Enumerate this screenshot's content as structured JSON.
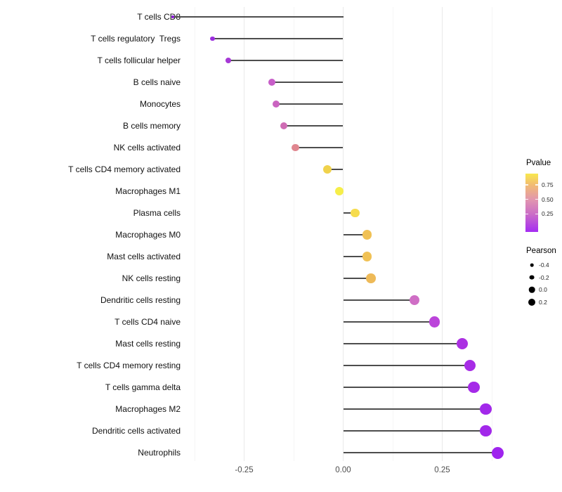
{
  "chart_data": {
    "type": "scatter",
    "variant": "lollipop",
    "title": "",
    "xlabel": "",
    "ylabel": "",
    "xlim": [
      -0.45,
      0.42
    ],
    "grid": "vertical gridlines only, no axis lines (ggplot minimal theme)",
    "legend_position": "right",
    "x_major_gridlines": [
      -0.25,
      0,
      0.25
    ],
    "x_minor_gridlines": [
      -0.375,
      -0.125,
      0.125,
      0.375
    ],
    "categories": [
      "T cells CD8",
      "T cells regulatory  Tregs",
      "T cells follicular helper",
      "B cells naive",
      "Monocytes",
      "B cells memory",
      "NK cells activated",
      "T cells CD4 memory activated",
      "Macrophages M1",
      "Plasma cells",
      "Macrophages M0",
      "Mast cells activated",
      "NK cells resting",
      "Dendritic cells resting",
      "T cells CD4 naive",
      "Mast cells resting",
      "T cells CD4 memory resting",
      "T cells gamma delta",
      "Macrophages M2",
      "Dendritic cells activated",
      "Neutrophils"
    ],
    "series": [
      {
        "name": "Pearson correlation",
        "values": [
          -0.43,
          -0.33,
          -0.29,
          -0.18,
          -0.17,
          -0.15,
          -0.12,
          -0.04,
          -0.01,
          0.03,
          0.06,
          0.06,
          0.07,
          0.18,
          0.23,
          0.3,
          0.32,
          0.33,
          0.36,
          0.36,
          0.39
        ]
      }
    ],
    "point_colors": [
      "#8a16d8",
      "#9b2ede",
      "#a639d6",
      "#c75ec8",
      "#ca63c0",
      "#cf6cb4",
      "#e0868f",
      "#f0d24c",
      "#f6ee49",
      "#f6dc4d",
      "#f0c155",
      "#f0c155",
      "#eeba58",
      "#cf6ec5",
      "#bb44da",
      "#ab30e2",
      "#a72ce6",
      "#a52ae8",
      "#a228ea",
      "#a228ea",
      "#9f24ee"
    ],
    "color_encodes": "Pvalue",
    "size_encodes": "Pearson"
  },
  "axis": {
    "x_ticks": [
      {
        "label": "-0.25",
        "value": -0.25
      },
      {
        "label": "0.00",
        "value": 0
      },
      {
        "label": "0.25",
        "value": 0.25
      }
    ]
  },
  "legend": {
    "pvalue": {
      "title": "Pvalue",
      "tick_labels": [
        "0.75",
        "0.50",
        "0.25"
      ],
      "tick_positions_pct": [
        19,
        44,
        69
      ],
      "gradient_stops": [
        "#f8e84e",
        "#f2bc72",
        "#e297ae",
        "#cb6ec6",
        "#a52cf2"
      ]
    },
    "pearson": {
      "title": "Pearson",
      "dot_color": "#000000",
      "items": [
        {
          "label": "-0.4",
          "value": -0.4
        },
        {
          "label": "-0.2",
          "value": -0.2
        },
        {
          "label": "0.0",
          "value": 0.0
        },
        {
          "label": "0.2",
          "value": 0.2
        }
      ]
    }
  },
  "colors": {
    "stem": "#4d4d4d",
    "grid_major": "#e9e9e9",
    "grid_minor": "#f5f5f5",
    "axis_text": "#4d4d4d",
    "category_text": "#111111",
    "background": "#ffffff"
  }
}
